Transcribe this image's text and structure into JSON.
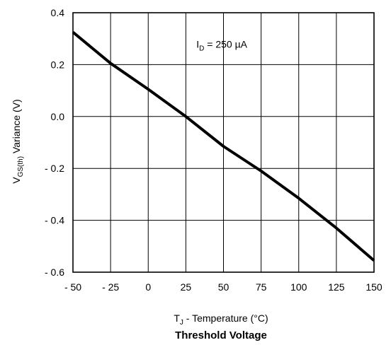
{
  "chart_data": {
    "type": "line",
    "title": "Threshold Voltage",
    "xlabel": {
      "main": "T",
      "sub": "J",
      "rest": " - Temperature (°C)"
    },
    "ylabel": {
      "main": "V",
      "sub": "GS(th)",
      "rest": "  Variance (V)"
    },
    "annotation": {
      "main": "I",
      "sub": "D",
      "rest": " = 250 µA",
      "x": 32,
      "y": 0.265
    },
    "xlim": [
      -50,
      150
    ],
    "ylim": [
      -0.6,
      0.4
    ],
    "xticks": [
      -50,
      -25,
      0,
      25,
      50,
      75,
      100,
      125,
      150
    ],
    "xtick_labels": [
      "- 50",
      "- 25",
      "0",
      "25",
      "50",
      "75",
      "100",
      "125",
      "150"
    ],
    "yticks": [
      0.4,
      0.2,
      0.0,
      -0.2,
      -0.4,
      -0.6
    ],
    "ytick_labels": [
      "0.4",
      "0.2",
      "0.0",
      "- 0.2",
      "- 0.4",
      "- 0.6"
    ],
    "grid": true,
    "line_color": "#000000",
    "series": [
      {
        "x": [
          -50,
          -25,
          0,
          25,
          50,
          75,
          100,
          125,
          150
        ],
        "y": [
          0.325,
          0.205,
          0.105,
          0.0,
          -0.115,
          -0.21,
          -0.315,
          -0.43,
          -0.555
        ]
      }
    ]
  }
}
